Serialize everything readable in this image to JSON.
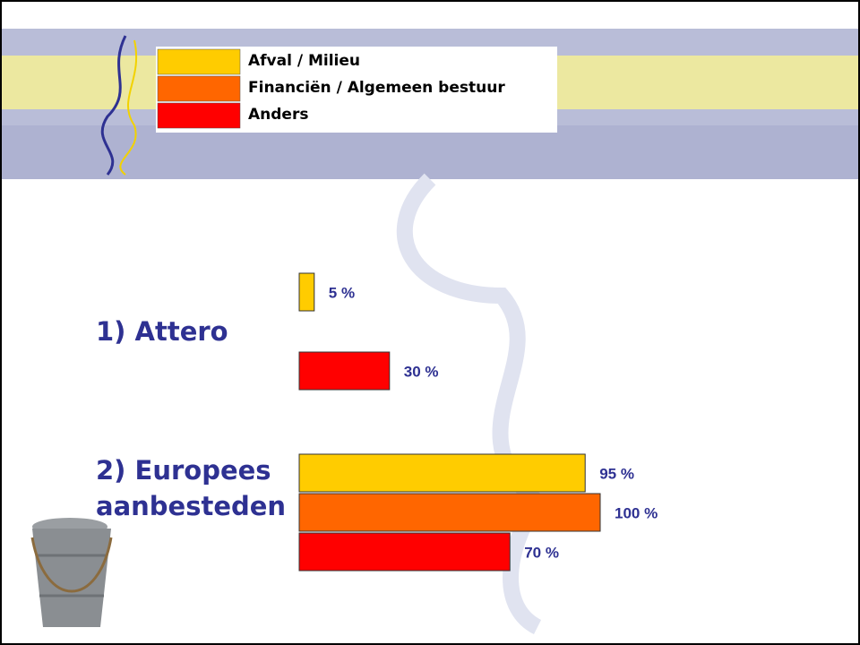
{
  "chart_data": {
    "type": "bar",
    "orientation": "horizontal",
    "categories": [
      "1) Attero",
      "2) Europees aanbesteden"
    ],
    "series": [
      {
        "name": "Afval / Milieu",
        "color": "#FFCC00",
        "values": [
          5,
          95
        ],
        "value_labels": [
          "5 %",
          "95 %"
        ]
      },
      {
        "name": "Financiën / Algemeen bestuur",
        "color": "#FF6600",
        "values": [
          null,
          100
        ],
        "value_labels": [
          null,
          "100 %"
        ]
      },
      {
        "name": "Anders",
        "color": "#FF0000",
        "values": [
          30,
          70
        ],
        "value_labels": [
          "30 %",
          "70 %"
        ]
      }
    ],
    "xlim": [
      0,
      100
    ]
  }
}
